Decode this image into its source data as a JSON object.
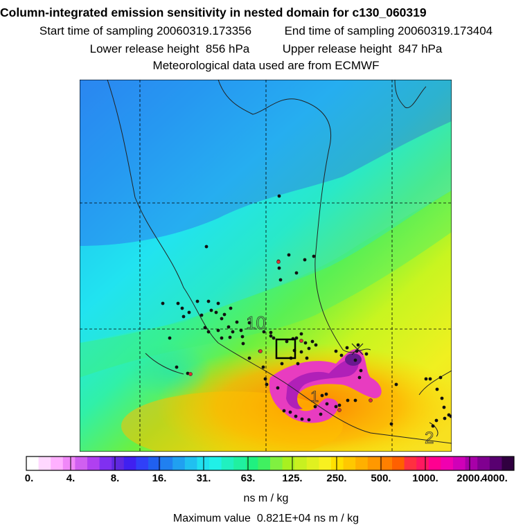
{
  "title": "Column-integrated emission sensitivity in nested domain for c130_060319",
  "sampling": {
    "start_label": "Start time of sampling",
    "start_value": "20060319.173356",
    "end_label": "End time of sampling",
    "end_value": "20060319.173404"
  },
  "release": {
    "lower_label": "Lower release height",
    "lower_value": "856 hPa",
    "upper_label": "Upper release height",
    "upper_value": "847 hPa"
  },
  "met_note": "Meteorological data used are from ECMWF",
  "map": {
    "contour_labels": [
      "10",
      "1",
      "2"
    ],
    "colors": {
      "background_cyan": "#2be6f0",
      "blue": "#2b7ff0",
      "green": "#3fe86a",
      "yellow_green": "#c9f520",
      "orange": "#ffb000",
      "magenta": "#e020a0",
      "purple": "#9020b0"
    }
  },
  "colorbar": {
    "tick_labels": [
      "0.",
      "4.",
      "8.",
      "16.",
      "31.",
      "63.",
      "125.",
      "250.",
      "500.",
      "1000.",
      "2000.",
      "4000."
    ],
    "colors": [
      "#ffffff",
      "#ffd8ff",
      "#ffb0ff",
      "#f088f8",
      "#d060f0",
      "#b040f0",
      "#8030f0",
      "#6028e0",
      "#4020f0",
      "#3040f8",
      "#2060f0",
      "#2080f0",
      "#20a0f0",
      "#20c0f0",
      "#20e0f0",
      "#20f0e8",
      "#20f0c0",
      "#20f0a0",
      "#20f080",
      "#40f060",
      "#80f040",
      "#a8f020",
      "#c8f020",
      "#e0f020",
      "#f8f020",
      "#ffe000",
      "#ffc800",
      "#ffb000",
      "#ff9800",
      "#ff8000",
      "#ff6000",
      "#ff3040",
      "#ff1860",
      "#ff0090",
      "#f000b0",
      "#d000b8",
      "#a800a8",
      "#800090",
      "#580070",
      "#300040"
    ],
    "units": "ns m / kg"
  },
  "max_value": {
    "label": "Maximum value",
    "value": "0.821E+04",
    "units": "ns m / kg"
  }
}
